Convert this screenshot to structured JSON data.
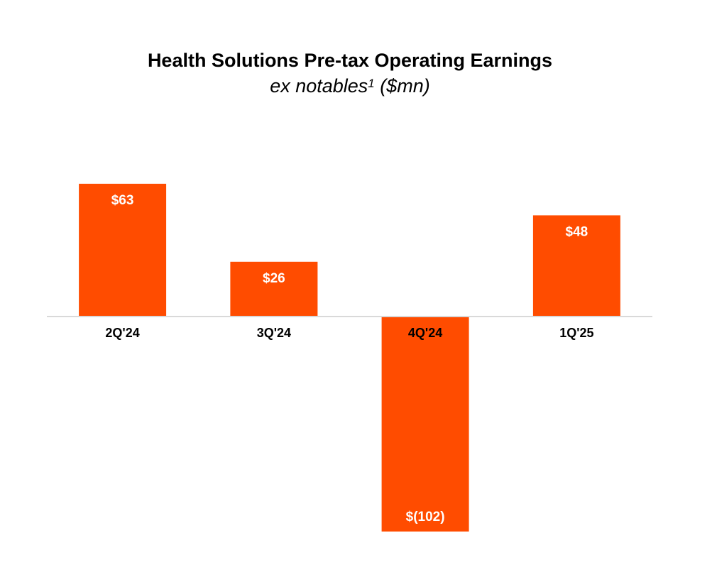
{
  "chart_data": {
    "type": "bar",
    "title": "Health Solutions Pre-tax Operating Earnings",
    "subtitle_text": "ex notables",
    "subtitle_sup": "1",
    "subtitle_unit": "($mn)",
    "xlabel": "",
    "ylabel": "",
    "categories": [
      "2Q'24",
      "3Q'24",
      "4Q'24",
      "1Q'25"
    ],
    "values": [
      63,
      26,
      -102,
      48
    ],
    "data_labels": [
      "$63",
      "$26",
      "$(102)",
      "$48"
    ],
    "ylim": [
      -102,
      63
    ],
    "grid": false,
    "legend": "none",
    "bar_color": "#FF4C00",
    "axis_color": "#d9d9d9"
  }
}
